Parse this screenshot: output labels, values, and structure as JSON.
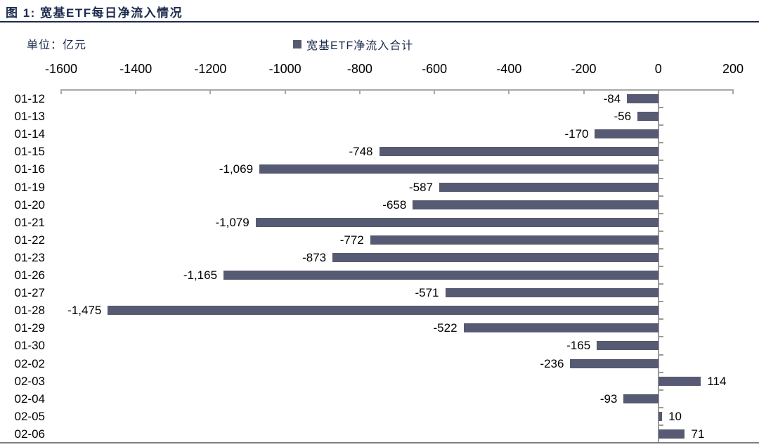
{
  "figure": {
    "title": "图 1: 宽基ETF每日净流入情况",
    "unit_label": "单位：亿元",
    "legend": {
      "label": "宽基ETF净流入合计",
      "swatch_color": "#565a72"
    }
  },
  "colors": {
    "accent_navy": "#1c2b4e",
    "bar": "#565a72",
    "axis_top": "#a8a8a8",
    "axis_zero": "#9a9a9a",
    "axis_bottom": "#7f7f7f",
    "label_text": "#000000"
  },
  "chart_data": {
    "type": "bar",
    "orientation": "horizontal",
    "title": "宽基ETF每日净流入情况",
    "unit": "亿元",
    "series_name": "宽基ETF净流入合计",
    "legend_position": "top",
    "grid": false,
    "categories": [
      "01-12",
      "01-13",
      "01-14",
      "01-15",
      "01-16",
      "01-19",
      "01-20",
      "01-21",
      "01-22",
      "01-23",
      "01-26",
      "01-27",
      "01-28",
      "01-29",
      "01-30",
      "02-02",
      "02-03",
      "02-04",
      "02-05",
      "02-06"
    ],
    "values": [
      -84,
      -56,
      -170,
      -748,
      -1069,
      -587,
      -658,
      -1079,
      -772,
      -873,
      -1165,
      -571,
      -1475,
      -522,
      -165,
      -236,
      114,
      -93,
      10,
      71
    ],
    "value_labels": [
      "-84",
      "-56",
      "-170",
      "-748",
      "-1,069",
      "-587",
      "-658",
      "-1,079",
      "-772",
      "-873",
      "-1,165",
      "-571",
      "-1,475",
      "-522",
      "-165",
      "-236",
      "114",
      "-93",
      "10",
      "71"
    ],
    "xlim": [
      -1600,
      200
    ],
    "xticks": [
      -1600,
      -1400,
      -1200,
      -1000,
      -800,
      -600,
      -400,
      -200,
      0,
      200
    ],
    "bar_color": "#565a72"
  }
}
